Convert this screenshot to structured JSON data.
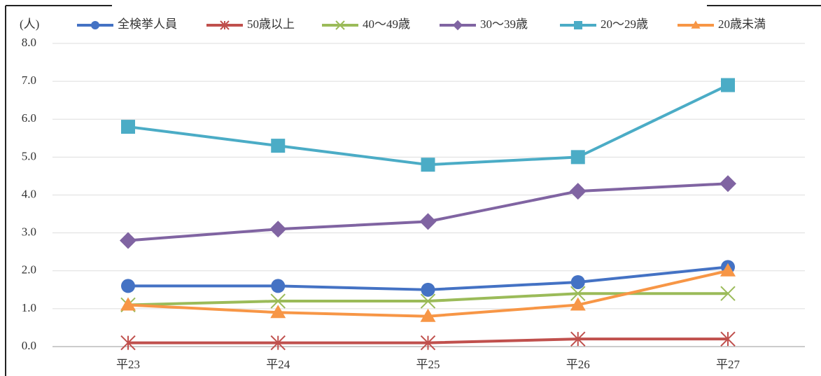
{
  "chart_data": {
    "type": "line",
    "y_label": "(人)",
    "categories": [
      "平23",
      "平24",
      "平25",
      "平26",
      "平27"
    ],
    "series": [
      {
        "name": "全検挙人員",
        "color": "#4472c4",
        "marker": "circle",
        "values": [
          1.6,
          1.6,
          1.5,
          1.7,
          2.1
        ]
      },
      {
        "name": "50歳以上",
        "color": "#c0504d",
        "marker": "star",
        "values": [
          0.1,
          0.1,
          0.1,
          0.2,
          0.2
        ]
      },
      {
        "name": "40～49歳",
        "color": "#9bbb59",
        "marker": "x",
        "values": [
          1.1,
          1.2,
          1.2,
          1.4,
          1.4
        ]
      },
      {
        "name": "30～39歳",
        "color": "#8064a2",
        "marker": "diamond",
        "values": [
          2.8,
          3.1,
          3.3,
          4.1,
          4.3
        ]
      },
      {
        "name": "20～29歳",
        "color": "#4bacc6",
        "marker": "square",
        "values": [
          5.8,
          5.3,
          4.8,
          5.0,
          6.9
        ]
      },
      {
        "name": "20歳未満",
        "color": "#f79646",
        "marker": "triangle",
        "values": [
          1.1,
          0.9,
          0.8,
          1.1,
          2.0
        ]
      }
    ],
    "ylim": [
      0,
      8
    ],
    "yticks": [
      {
        "value": 0,
        "label": "0.0"
      },
      {
        "value": 1,
        "label": "1.0"
      },
      {
        "value": 2,
        "label": "2.0"
      },
      {
        "value": 3,
        "label": "3.0"
      },
      {
        "value": 4,
        "label": "4.0"
      },
      {
        "value": 5,
        "label": "5.0"
      },
      {
        "value": 6,
        "label": "6.0"
      },
      {
        "value": 7,
        "label": "7.0"
      },
      {
        "value": 8,
        "label": "8.0"
      }
    ],
    "grid": true,
    "legend": "top"
  }
}
